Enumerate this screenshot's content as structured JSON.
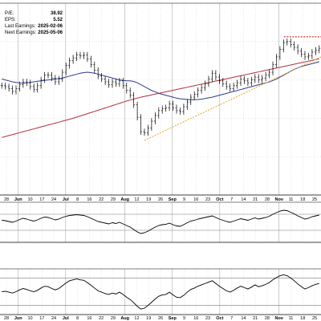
{
  "stats": [
    {
      "label": "P/E:",
      "value": "38.92"
    },
    {
      "label": "EPS:",
      "value": "5.52"
    },
    {
      "label": "Last Earnings:",
      "value": "2025-02-06"
    },
    {
      "label": "Next Earnings:",
      "value": "2025-05-06"
    }
  ],
  "chart_data": [
    {
      "type": "line",
      "subtype": "ohlc-bars",
      "title": "",
      "xlabel": "",
      "ylabel": "",
      "x_ticks": [
        "28",
        "Jun",
        "10",
        "17",
        "24",
        "Jul",
        "8",
        "16",
        "22",
        "29",
        "Aug",
        "12",
        "19",
        "26",
        "Sep",
        "9",
        "16",
        "23",
        "Oct",
        "7",
        "14",
        "21",
        "28",
        "Nov",
        "11",
        "18",
        "25"
      ],
      "month_ticks": [
        "Jun",
        "Jul",
        "Aug",
        "Sep",
        "Oct",
        "Nov"
      ],
      "ylim": [
        0,
        100
      ],
      "grid": true,
      "series": [
        {
          "values": [
            57.0,
            56.5,
            55.5,
            54.0,
            55.5,
            57.5,
            59.0,
            58.5,
            56.5,
            55.0,
            57.0,
            60.0,
            62.5,
            62.5,
            61.0,
            59.0,
            60.5,
            64.0,
            67.5,
            70.0,
            71.5,
            73.0,
            72.5,
            73.0,
            71.0,
            68.0,
            65.0,
            62.0,
            60.5,
            59.0,
            57.5,
            59.0,
            58.0,
            59.5,
            57.0,
            54.5,
            52.0,
            47.0,
            40.5,
            33.0,
            32.5,
            35.0,
            38.5,
            41.5,
            44.0,
            45.0,
            45.5,
            47.5,
            45.5,
            44.0,
            43.5,
            46.0,
            48.5,
            51.0,
            52.5,
            54.5,
            56.0,
            58.0,
            60.5,
            63.5,
            61.5,
            59.5,
            58.0,
            56.5,
            55.5,
            57.0,
            58.5,
            60.5,
            59.5,
            58.5,
            60.0,
            61.5,
            60.0,
            61.0,
            62.5,
            64.0,
            68.0,
            72.0,
            76.0,
            79.5,
            80.0,
            78.5,
            77.0,
            75.0,
            73.5,
            72.0,
            72.5,
            74.5,
            75.5,
            76.5
          ]
        },
        {
          "values": [
            60.5,
            60.0,
            59.5,
            59.0,
            58.7,
            58.5,
            58.3,
            58.5,
            58.8,
            59.0,
            59.3,
            59.5,
            59.8,
            60.0,
            60.2,
            60.5,
            60.7,
            61.0,
            61.5,
            62.0,
            62.5,
            63.0,
            63.5,
            63.8,
            64.0,
            63.8,
            63.5,
            63.0,
            62.5,
            62.0,
            61.5,
            61.0,
            60.5,
            60.0,
            59.8,
            59.5,
            59.5,
            59.2,
            58.5,
            57.5,
            56.5,
            55.5,
            54.5,
            53.8,
            53.0,
            52.5,
            52.0,
            51.5,
            51.0,
            50.5,
            50.2,
            50.0,
            49.8,
            49.7,
            49.7,
            49.8,
            50.0,
            50.3,
            50.7,
            51.0,
            51.5,
            52.0,
            52.5,
            53.0,
            53.5,
            54.0,
            54.5,
            55.0,
            55.5,
            56.0,
            56.5,
            57.0,
            57.5,
            58.0,
            58.5,
            59.0,
            59.7,
            60.5,
            61.5,
            62.5,
            63.5,
            64.5,
            65.5,
            66.3,
            67.0,
            67.5,
            68.0,
            68.5,
            69.0,
            69.5
          ]
        },
        {
          "values": [
            30.0,
            30.5,
            31.0,
            31.5,
            32.0,
            32.5,
            33.0,
            33.5,
            34.0,
            34.5,
            35.0,
            35.5,
            36.0,
            36.5,
            37.0,
            37.5,
            38.0,
            38.5,
            39.0,
            39.5,
            40.0,
            40.6,
            41.2,
            41.8,
            42.4,
            43.0,
            43.6,
            44.2,
            44.8,
            45.4,
            46.0,
            46.6,
            47.2,
            47.8,
            48.4,
            49.0,
            49.5,
            50.0,
            50.5,
            51.0,
            51.4,
            51.8,
            52.2,
            52.6,
            53.0,
            53.4,
            53.8,
            54.2,
            54.6,
            55.0,
            55.4,
            55.8,
            56.2,
            56.6,
            57.0,
            57.4,
            57.8,
            58.2,
            58.6,
            59.0,
            59.4,
            59.8,
            60.2,
            60.6,
            61.0,
            61.4,
            61.8,
            62.2,
            62.6,
            63.0,
            63.4,
            63.8,
            64.2,
            64.6,
            65.0,
            65.4,
            65.8,
            66.2,
            66.6,
            67.0,
            67.4,
            67.8,
            68.2,
            68.6,
            69.0,
            69.4,
            69.8,
            70.2,
            70.6,
            71.0
          ]
        }
      ],
      "colors": {
        "price": "#000000",
        "ma_short": "#2b3a8f",
        "ma_long": "#b0303a",
        "trendline": "#f0a020",
        "resistance": "#cc0000",
        "grid": "#cfcfcf"
      }
    },
    {
      "type": "line",
      "title": "",
      "ylim": [
        0,
        100
      ],
      "grid": true,
      "series": [
        {
          "values": [
            55,
            54,
            52,
            50,
            53,
            57,
            60,
            58,
            55,
            53,
            56,
            60,
            63,
            62,
            59,
            56,
            58,
            62,
            65,
            67,
            68,
            69,
            68,
            67,
            64,
            60,
            56,
            52,
            50,
            48,
            46,
            49,
            47,
            50,
            46,
            42,
            38,
            32,
            26,
            22,
            24,
            28,
            33,
            38,
            42,
            44,
            45,
            48,
            44,
            41,
            40,
            44,
            49,
            53,
            55,
            58,
            60,
            62,
            64,
            66,
            62,
            58,
            55,
            52,
            50,
            53,
            56,
            59,
            57,
            55,
            58,
            61,
            58,
            60,
            62,
            65,
            70,
            74,
            78,
            80,
            79,
            75,
            71,
            66,
            62,
            58,
            60,
            64,
            66,
            68
          ]
        }
      ],
      "colors": {
        "line": "#000000",
        "reference": "#7a7a7a"
      }
    },
    {
      "type": "line",
      "title": "",
      "ylim": [
        0,
        100
      ],
      "grid": true,
      "series": [
        {
          "values": [
            50,
            51,
            49,
            47,
            50,
            54,
            57,
            55,
            52,
            50,
            53,
            58,
            62,
            61,
            57,
            54,
            57,
            63,
            69,
            74,
            76,
            78,
            76,
            75,
            70,
            64,
            58,
            52,
            49,
            46,
            44,
            47,
            45,
            49,
            44,
            38,
            33,
            26,
            18,
            12,
            14,
            20,
            27,
            34,
            40,
            43,
            44,
            49,
            43,
            38,
            37,
            42,
            49,
            55,
            58,
            62,
            65,
            68,
            71,
            74,
            68,
            62,
            57,
            52,
            49,
            53,
            58,
            62,
            59,
            56,
            60,
            65,
            61,
            63,
            66,
            70,
            76,
            81,
            85,
            87,
            85,
            80,
            74,
            67,
            61,
            56,
            59,
            63,
            66,
            68
          ]
        }
      ],
      "colors": {
        "line": "#000000",
        "reference": "#7a7a7a"
      }
    }
  ]
}
